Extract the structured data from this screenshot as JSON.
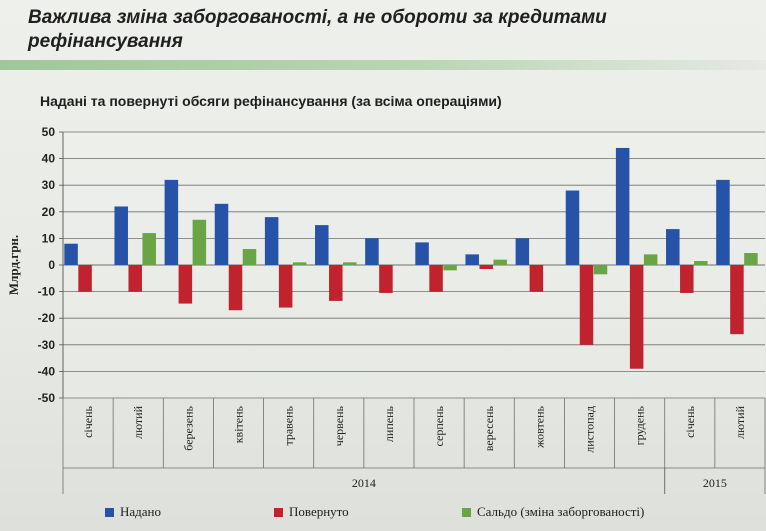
{
  "slide": {
    "title": "Важлива зміна заборгованості, а не обороти за кредитами рефінансування"
  },
  "chart_data": {
    "type": "bar",
    "title": "Надані та повернуті обсяги рефінансування (за всіма операціями)",
    "ylabel": "Млрд.грн.",
    "ylim": [
      -50,
      50
    ],
    "yticks": [
      50,
      40,
      30,
      20,
      10,
      0,
      -10,
      -20,
      -30,
      -40,
      -50
    ],
    "grid": true,
    "legend_position": "bottom",
    "categories": [
      "січень",
      "лютий",
      "березень",
      "квітень",
      "травень",
      "червень",
      "липень",
      "серпень",
      "вересень",
      "жовтень",
      "листопад",
      "грудень",
      "січень",
      "лютий"
    ],
    "year_groups": [
      {
        "label": "2014",
        "start": 0,
        "end": 11
      },
      {
        "label": "2015",
        "start": 12,
        "end": 13
      }
    ],
    "series": [
      {
        "name": "Надано",
        "color": "#2653a8",
        "values": [
          8,
          22,
          32,
          23,
          18,
          15,
          10,
          8.5,
          4,
          10,
          28,
          44,
          13.5,
          32
        ]
      },
      {
        "name": "Повернуто",
        "color": "#c1232e",
        "values": [
          -10,
          -10,
          -14.5,
          -17,
          -16,
          -13.5,
          -10.5,
          -10,
          -1.5,
          -10,
          -30,
          -39,
          -10.5,
          -26
        ]
      },
      {
        "name": "Сальдо (зміна заборгованості)",
        "color": "#69a544",
        "values": [
          0,
          12,
          17,
          6,
          1,
          1,
          0,
          -2,
          2,
          0,
          -3.5,
          4,
          1.5,
          4.5
        ]
      }
    ]
  }
}
